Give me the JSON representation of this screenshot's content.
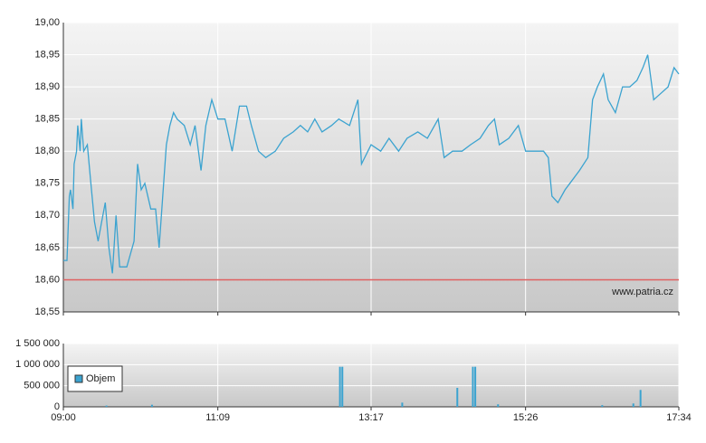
{
  "chart_data": [
    {
      "type": "line",
      "color": "#3ba3d0",
      "x": [
        "09:00",
        "09:03",
        "09:05",
        "09:06",
        "09:08",
        "09:09",
        "09:11",
        "09:12",
        "09:14",
        "09:15",
        "09:17",
        "09:20",
        "09:23",
        "09:26",
        "09:29",
        "09:32",
        "09:35",
        "09:38",
        "09:41",
        "09:44",
        "09:47",
        "09:53",
        "09:59",
        "10:02",
        "10:05",
        "10:08",
        "10:13",
        "10:17",
        "10:20",
        "10:23",
        "10:26",
        "10:29",
        "10:32",
        "10:35",
        "10:41",
        "10:46",
        "10:50",
        "10:55",
        "10:59",
        "11:04",
        "11:09",
        "11:15",
        "11:21",
        "11:27",
        "11:33",
        "11:37",
        "11:43",
        "11:49",
        "11:57",
        "12:04",
        "12:12",
        "12:18",
        "12:24",
        "12:30",
        "12:36",
        "12:44",
        "12:50",
        "12:59",
        "13:06",
        "13:09",
        "13:17",
        "13:25",
        "13:32",
        "13:40",
        "13:47",
        "13:56",
        "14:04",
        "14:13",
        "14:18",
        "14:25",
        "14:33",
        "14:40",
        "14:48",
        "14:55",
        "15:00",
        "15:04",
        "15:12",
        "15:20",
        "15:26",
        "15:33",
        "15:41",
        "15:45",
        "15:48",
        "15:53",
        "15:59",
        "16:03",
        "16:11",
        "16:18",
        "16:22",
        "16:26",
        "16:31",
        "16:35",
        "16:41",
        "16:47",
        "16:53",
        "16:59",
        "17:04",
        "17:08",
        "17:13",
        "17:19",
        "17:25",
        "17:30",
        "17:34"
      ],
      "values": [
        18.63,
        18.63,
        18.73,
        18.74,
        18.71,
        18.78,
        18.8,
        18.84,
        18.8,
        18.85,
        18.8,
        18.81,
        18.75,
        18.69,
        18.66,
        18.69,
        18.72,
        18.65,
        18.61,
        18.7,
        18.62,
        18.62,
        18.66,
        18.78,
        18.74,
        18.75,
        18.71,
        18.71,
        18.65,
        18.73,
        18.81,
        18.84,
        18.86,
        18.85,
        18.84,
        18.81,
        18.84,
        18.77,
        18.84,
        18.88,
        18.85,
        18.85,
        18.8,
        18.87,
        18.87,
        18.84,
        18.8,
        18.79,
        18.8,
        18.82,
        18.83,
        18.84,
        18.83,
        18.85,
        18.83,
        18.84,
        18.85,
        18.84,
        18.88,
        18.78,
        18.81,
        18.8,
        18.82,
        18.8,
        18.82,
        18.83,
        18.82,
        18.85,
        18.79,
        18.8,
        18.8,
        18.81,
        18.82,
        18.84,
        18.85,
        18.81,
        18.82,
        18.84,
        18.8,
        18.8,
        18.8,
        18.79,
        18.73,
        18.72,
        18.74,
        18.75,
        18.77,
        18.79,
        18.88,
        18.9,
        18.92,
        18.88,
        18.86,
        18.9,
        18.9,
        18.91,
        18.93,
        18.95,
        18.88,
        18.89,
        18.9,
        18.93,
        18.92
      ],
      "xlim": [
        "09:00",
        "17:34"
      ],
      "xticks": [
        "09:00",
        "11:09",
        "13:17",
        "15:26",
        "17:34"
      ],
      "ylim": [
        18.55,
        19
      ],
      "yticks": [
        {
          "value": 18.55,
          "label": "18,55"
        },
        {
          "value": 18.6,
          "label": "18,60"
        },
        {
          "value": 18.65,
          "label": "18,65"
        },
        {
          "value": 18.7,
          "label": "18,70"
        },
        {
          "value": 18.75,
          "label": "18,75"
        },
        {
          "value": 18.8,
          "label": "18,80"
        },
        {
          "value": 18.85,
          "label": "18,85"
        },
        {
          "value": 18.9,
          "label": "18,90"
        },
        {
          "value": 18.95,
          "label": "18,95"
        },
        {
          "value": 19,
          "label": "19,00"
        }
      ],
      "reference_line": 18.6,
      "reference_color": "#e06060",
      "watermark": "www.patria.cz",
      "grid": true
    },
    {
      "type": "bar",
      "x": [
        "09:36",
        "10:14",
        "12:51",
        "12:53",
        "13:43",
        "14:29",
        "14:42",
        "14:44",
        "15:03",
        "16:30",
        "16:56",
        "17:02"
      ],
      "series": [
        {
          "name": "Objem",
          "color": "#3ba3d0",
          "values": [
            30000,
            50000,
            950000,
            950000,
            100000,
            450000,
            950000,
            950000,
            60000,
            40000,
            80000,
            400000
          ]
        }
      ],
      "xlim": [
        "09:00",
        "17:34"
      ],
      "xticks": [
        "09:00",
        "11:09",
        "13:17",
        "15:26",
        "17:34"
      ],
      "ylim": [
        0,
        1500000
      ],
      "yticks": [
        0,
        {
          "value": 500000,
          "label": "500 000"
        },
        {
          "value": 1000000,
          "label": "1 000 000"
        },
        {
          "value": 1500000,
          "label": "1 500 000"
        }
      ],
      "legend": "upper-left",
      "grid": true
    }
  ]
}
